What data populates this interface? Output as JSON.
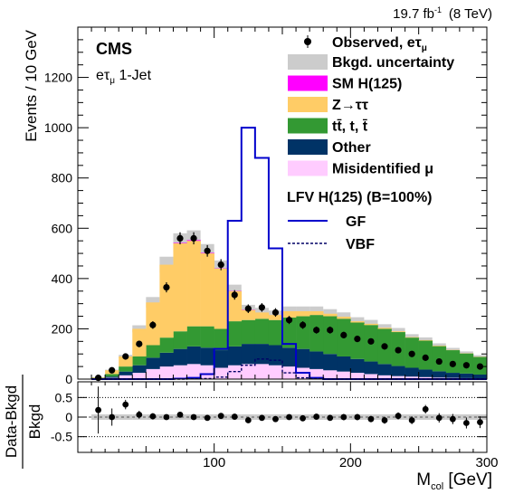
{
  "chart_data": {
    "type": "bar",
    "lumi_label": "19.7 fb",
    "lumi_sup": "-1",
    "energy_label": "(8 TeV)",
    "experiment": "CMS",
    "channel_base": "e",
    "channel_tau": "τ",
    "channel_mu": "μ",
    "channel_suffix": " 1-Jet",
    "xlabel_base": "M",
    "xlabel_sub": "col",
    "xlabel_unit": " [GeV]",
    "ylabel": "Events / 10 GeV",
    "ratio_ylabel_num": "Data-Bkgd",
    "ratio_ylabel_den": "Bkgd",
    "xlim": [
      0,
      300
    ],
    "ylim": [
      0,
      1400
    ],
    "ratio_ylim": [
      -0.9,
      0.9
    ],
    "xticks": [
      0,
      100,
      200,
      300
    ],
    "xtick_labels": [
      "100",
      "200",
      "300"
    ],
    "yticks": [
      0,
      200,
      400,
      600,
      800,
      1000,
      1200
    ],
    "ytick_labels": [
      "0",
      "200",
      "400",
      "600",
      "800",
      "1000",
      "1200"
    ],
    "ratio_yticks": [
      -0.5,
      0,
      0.5
    ],
    "ratio_ytick_labels": [
      "-0.5",
      "0",
      "0.5"
    ],
    "bin_edges": [
      10,
      20,
      30,
      40,
      50,
      60,
      70,
      80,
      90,
      100,
      110,
      120,
      130,
      140,
      150,
      160,
      170,
      180,
      190,
      200,
      210,
      220,
      230,
      240,
      250,
      260,
      270,
      280,
      290,
      300
    ],
    "stack": [
      {
        "key": "misid",
        "name": "Misidentified μ",
        "color": "#ffccff",
        "values": [
          2,
          5,
          15,
          25,
          40,
          50,
          55,
          60,
          55,
          45,
          55,
          60,
          60,
          55,
          50,
          45,
          40,
          35,
          30,
          25,
          20,
          15,
          12,
          10,
          8,
          6,
          5,
          4,
          3
        ]
      },
      {
        "key": "other",
        "name": "Other",
        "color": "#003366",
        "values": [
          0,
          5,
          15,
          30,
          45,
          55,
          65,
          70,
          70,
          70,
          75,
          80,
          80,
          80,
          75,
          75,
          70,
          65,
          60,
          55,
          50,
          45,
          40,
          35,
          30,
          25,
          20,
          18,
          15
        ]
      },
      {
        "key": "ttbar",
        "name": "tt̄, t, t̄",
        "color": "#339933",
        "values": [
          3,
          10,
          20,
          35,
          50,
          60,
          70,
          80,
          85,
          85,
          100,
          95,
          100,
          100,
          120,
          130,
          145,
          150,
          150,
          145,
          145,
          140,
          135,
          120,
          115,
          100,
          90,
          80,
          70
        ]
      },
      {
        "key": "ztt",
        "name": "Z→ττ",
        "color": "#ffcc66",
        "values": [
          2,
          15,
          40,
          110,
          170,
          290,
          350,
          340,
          290,
          240,
          120,
          40,
          25,
          20,
          25,
          20,
          15,
          10,
          8,
          5,
          5,
          4,
          3,
          2,
          2,
          2,
          1,
          1,
          1
        ]
      },
      {
        "key": "smh",
        "name": "SM H(125)",
        "color": "#ff00ff",
        "values": [
          0,
          0,
          0,
          0,
          0,
          0,
          2,
          3,
          2,
          1,
          1,
          1,
          0,
          0,
          0,
          0,
          0,
          0,
          0,
          0,
          0,
          0,
          0,
          0,
          0,
          0,
          0,
          0,
          0
        ]
      }
    ],
    "bkg_uncertainty_rel": 0.07,
    "uncertainty_name": "Bkgd. uncertainty",
    "uncertainty_color": "#cccccc",
    "signal": [
      {
        "key": "gf",
        "name": "GF",
        "color": "#0000cc",
        "dash": "none",
        "values": [
          0,
          0,
          0,
          0,
          0,
          0,
          2,
          5,
          20,
          120,
          630,
          1000,
          880,
          520,
          140,
          25,
          5,
          0,
          0,
          0,
          0,
          0,
          0,
          0,
          0,
          0,
          0,
          0,
          0
        ]
      },
      {
        "key": "vbf",
        "name": "VBF",
        "color": "#000066",
        "dash": "3,2",
        "values": [
          0,
          0,
          0,
          0,
          0,
          0,
          0,
          1,
          2,
          8,
          30,
          55,
          80,
          75,
          25,
          5,
          2,
          0,
          0,
          0,
          0,
          0,
          0,
          0,
          0,
          0,
          0,
          0,
          0
        ]
      }
    ],
    "signal_header": "LFV H(125) (B=100%)",
    "data": {
      "name": "Observed, eτ",
      "name_sub": "μ",
      "x": [
        15,
        25,
        35,
        45,
        55,
        65,
        75,
        85,
        95,
        105,
        115,
        125,
        135,
        145,
        155,
        165,
        175,
        185,
        195,
        205,
        215,
        225,
        235,
        245,
        255,
        265,
        275,
        285,
        295
      ],
      "y": [
        5,
        35,
        90,
        140,
        215,
        365,
        560,
        560,
        510,
        455,
        335,
        280,
        285,
        265,
        235,
        215,
        195,
        195,
        175,
        160,
        150,
        130,
        115,
        100,
        85,
        70,
        60,
        55,
        50
      ],
      "yerr": [
        3,
        7,
        10,
        13,
        15,
        20,
        24,
        24,
        23,
        22,
        19,
        17,
        17,
        17,
        16,
        15,
        14,
        14,
        13,
        13,
        12,
        12,
        11,
        10,
        10,
        9,
        8,
        8,
        8
      ],
      "ratio": [
        0.18,
        0.0,
        0.32,
        0.06,
        0.02,
        0.0,
        0.06,
        0.0,
        -0.02,
        0.03,
        0.01,
        -0.08,
        -0.02,
        -0.05,
        0.0,
        -0.03,
        0.01,
        -0.02,
        0.0,
        0.0,
        -0.05,
        -0.08,
        0.03,
        -0.08,
        0.2,
        -0.02,
        -0.05,
        -0.15,
        -0.13
      ],
      "ratio_err": [
        0.6,
        0.22,
        0.12,
        0.1,
        0.08,
        0.06,
        0.05,
        0.05,
        0.05,
        0.05,
        0.06,
        0.06,
        0.06,
        0.06,
        0.07,
        0.07,
        0.07,
        0.07,
        0.08,
        0.08,
        0.08,
        0.09,
        0.09,
        0.1,
        0.11,
        0.12,
        0.13,
        0.14,
        0.15
      ]
    }
  }
}
